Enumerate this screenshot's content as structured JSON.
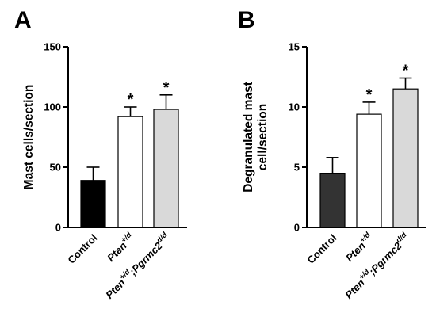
{
  "panels": [
    {
      "letter": "A"
    },
    {
      "letter": "B"
    }
  ],
  "colors": {
    "control": "#000000",
    "pten": "#ffffff",
    "pten_pgrmc2": "#d9d9d9",
    "control_b": "#333333",
    "axis": "#000000"
  },
  "chart_data": [
    {
      "type": "bar",
      "panel": "A",
      "ylabel": "Mast cells/section",
      "xlabel": "",
      "ylim": [
        0,
        150
      ],
      "yticks": [
        0,
        50,
        100,
        150
      ],
      "grid": false,
      "categories": [
        "Control",
        "Pten+/d",
        "Pten+/d;Pgrmc2d/d"
      ],
      "category_labels": [
        {
          "base": "Control",
          "italic": false
        },
        {
          "base": "Pten",
          "sup": "+/d",
          "italic": true
        },
        {
          "base": "Pten",
          "sup": "+/d",
          "mid": ";Pgrmc2",
          "sup2": "d/d",
          "italic": true
        }
      ],
      "values": [
        39,
        92,
        98
      ],
      "errors": [
        11,
        8,
        12
      ],
      "bar_colors": [
        "#000000",
        "#ffffff",
        "#d9d9d9"
      ],
      "significance": [
        "",
        "*",
        "*"
      ]
    },
    {
      "type": "bar",
      "panel": "B",
      "ylabel": "Degranulated mast cell/section",
      "ylabel_lines": [
        "Degranulated mast",
        "cell/section"
      ],
      "xlabel": "",
      "ylim": [
        0,
        15
      ],
      "yticks": [
        0,
        5,
        10,
        15
      ],
      "grid": false,
      "categories": [
        "Control",
        "Pten+/d",
        "Pten+/d;Pgrmc2d/d"
      ],
      "category_labels": [
        {
          "base": "Control",
          "italic": false
        },
        {
          "base": "Pten",
          "sup": "+/d",
          "italic": true
        },
        {
          "base": "Pten",
          "sup": "+/d",
          "mid": ";Pgrmc2",
          "sup2": "d/d",
          "italic": true
        }
      ],
      "values": [
        4.5,
        9.4,
        11.5
      ],
      "errors": [
        1.3,
        1.0,
        0.9
      ],
      "bar_colors": [
        "#333333",
        "#ffffff",
        "#d9d9d9"
      ],
      "significance": [
        "",
        "*",
        "*"
      ]
    }
  ]
}
